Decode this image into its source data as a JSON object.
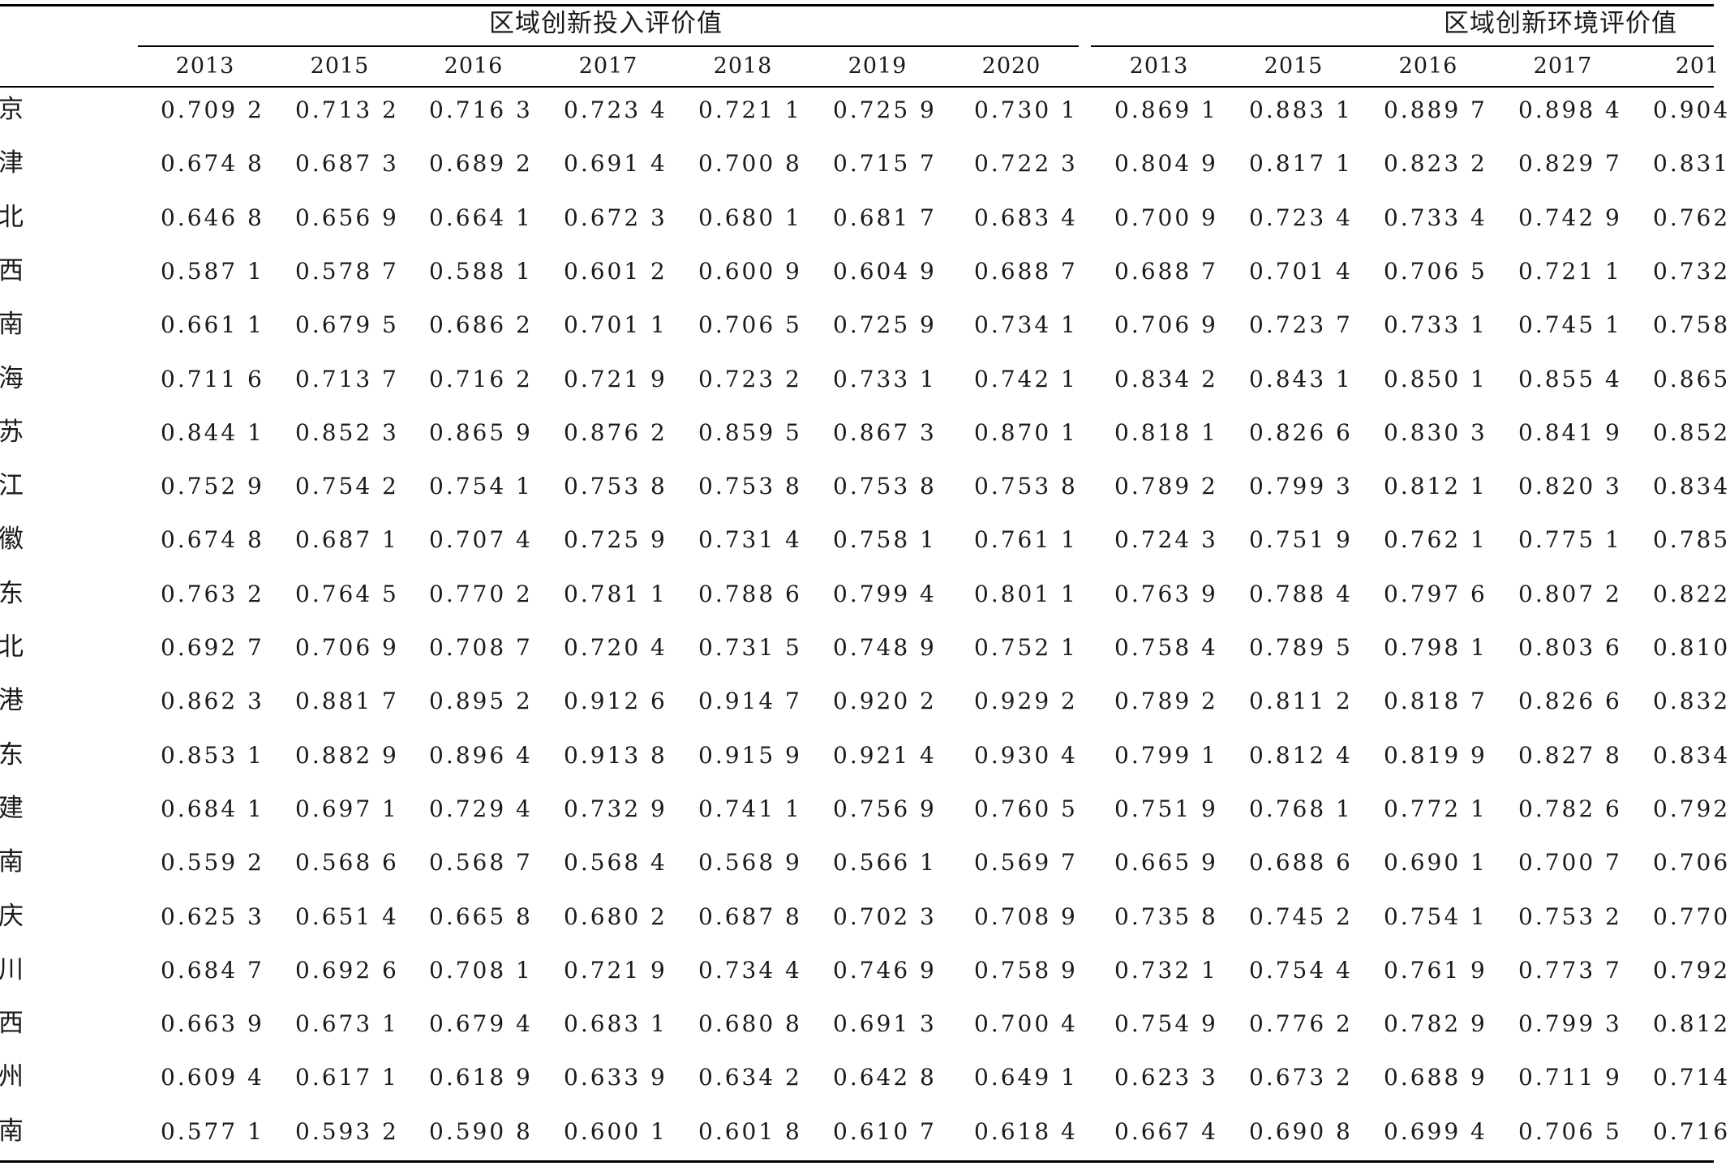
{
  "table": {
    "groups": [
      "区域创新投入评价值",
      "区域创新环境评价值"
    ],
    "years_group1": [
      "2013",
      "2015",
      "2016",
      "2017",
      "2018",
      "2019",
      "2020"
    ],
    "years_group2": [
      "2013",
      "2015",
      "2016",
      "2017",
      "201"
    ],
    "rows": [
      {
        "label": "京",
        "values": [
          "0.709 2",
          "0.713 2",
          "0.716 3",
          "0.723 4",
          "0.721 1",
          "0.725 9",
          "0.730 1",
          "0.869 1",
          "0.883 1",
          "0.889 7",
          "0.898 4",
          "0.904"
        ]
      },
      {
        "label": "津",
        "values": [
          "0.674 8",
          "0.687 3",
          "0.689 2",
          "0.691 4",
          "0.700 8",
          "0.715 7",
          "0.722 3",
          "0.804 9",
          "0.817 1",
          "0.823 2",
          "0.829 7",
          "0.831"
        ]
      },
      {
        "label": "北",
        "values": [
          "0.646 8",
          "0.656 9",
          "0.664 1",
          "0.672 3",
          "0.680 1",
          "0.681 7",
          "0.683 4",
          "0.700 9",
          "0.723 4",
          "0.733 4",
          "0.742 9",
          "0.762"
        ]
      },
      {
        "label": "西",
        "values": [
          "0.587 1",
          "0.578 7",
          "0.588 1",
          "0.601 2",
          "0.600 9",
          "0.604 9",
          "0.688 7",
          "0.688 7",
          "0.701 4",
          "0.706 5",
          "0.721 1",
          "0.732"
        ]
      },
      {
        "label": "南",
        "values": [
          "0.661 1",
          "0.679 5",
          "0.686 2",
          "0.701 1",
          "0.706 5",
          "0.725 9",
          "0.734 1",
          "0.706 9",
          "0.723 7",
          "0.733 1",
          "0.745 1",
          "0.758"
        ]
      },
      {
        "label": "海",
        "values": [
          "0.711 6",
          "0.713 7",
          "0.716 2",
          "0.721 9",
          "0.723 2",
          "0.733 1",
          "0.742 1",
          "0.834 2",
          "0.843 1",
          "0.850 1",
          "0.855 4",
          "0.865"
        ]
      },
      {
        "label": "苏",
        "values": [
          "0.844 1",
          "0.852 3",
          "0.865 9",
          "0.876 2",
          "0.859 5",
          "0.867 3",
          "0.870 1",
          "0.818 1",
          "0.826 6",
          "0.830 3",
          "0.841 9",
          "0.852"
        ]
      },
      {
        "label": "江",
        "values": [
          "0.752 9",
          "0.754 2",
          "0.754 1",
          "0.753 8",
          "0.753 8",
          "0.753 8",
          "0.753 8",
          "0.789 2",
          "0.799 3",
          "0.812 1",
          "0.820 3",
          "0.834"
        ]
      },
      {
        "label": "徽",
        "values": [
          "0.674 8",
          "0.687 1",
          "0.707 4",
          "0.725 9",
          "0.731 4",
          "0.758 1",
          "0.761 1",
          "0.724 3",
          "0.751 9",
          "0.762 1",
          "0.775 1",
          "0.785"
        ]
      },
      {
        "label": "东",
        "values": [
          "0.763 2",
          "0.764 5",
          "0.770 2",
          "0.781 1",
          "0.788 6",
          "0.799 4",
          "0.801 1",
          "0.763 9",
          "0.788 4",
          "0.797 6",
          "0.807 2",
          "0.822"
        ]
      },
      {
        "label": "北",
        "values": [
          "0.692 7",
          "0.706 9",
          "0.708 7",
          "0.720 4",
          "0.731 5",
          "0.748 9",
          "0.752 1",
          "0.758 4",
          "0.789 5",
          "0.798 1",
          "0.803 6",
          "0.810"
        ]
      },
      {
        "label": "港",
        "values": [
          "0.862 3",
          "0.881 7",
          "0.895 2",
          "0.912 6",
          "0.914 7",
          "0.920 2",
          "0.929 2",
          "0.789 2",
          "0.811 2",
          "0.818 7",
          "0.826 6",
          "0.832"
        ]
      },
      {
        "label": "东",
        "values": [
          "0.853 1",
          "0.882 9",
          "0.896 4",
          "0.913 8",
          "0.915 9",
          "0.921 4",
          "0.930 4",
          "0.799 1",
          "0.812 4",
          "0.819 9",
          "0.827 8",
          "0.834"
        ]
      },
      {
        "label": "建",
        "values": [
          "0.684 1",
          "0.697 1",
          "0.729 4",
          "0.732 9",
          "0.741 1",
          "0.756 9",
          "0.760 5",
          "0.751 9",
          "0.768 1",
          "0.772 1",
          "0.782 6",
          "0.792"
        ]
      },
      {
        "label": "南",
        "values": [
          "0.559 2",
          "0.568 6",
          "0.568 7",
          "0.568 4",
          "0.568 9",
          "0.566 1",
          "0.569 7",
          "0.665 9",
          "0.688 6",
          "0.690 1",
          "0.700 7",
          "0.706"
        ]
      },
      {
        "label": "庆",
        "values": [
          "0.625 3",
          "0.651 4",
          "0.665 8",
          "0.680 2",
          "0.687 8",
          "0.702 3",
          "0.708 9",
          "0.735 8",
          "0.745 2",
          "0.754 1",
          "0.753 2",
          "0.770"
        ]
      },
      {
        "label": "川",
        "values": [
          "0.684 7",
          "0.692 6",
          "0.708 1",
          "0.721 9",
          "0.734 4",
          "0.746 9",
          "0.758 9",
          "0.732 1",
          "0.754 4",
          "0.761 9",
          "0.773 7",
          "0.792"
        ]
      },
      {
        "label": "西",
        "values": [
          "0.663 9",
          "0.673 1",
          "0.679 4",
          "0.683 1",
          "0.680 8",
          "0.691 3",
          "0.700 4",
          "0.754 9",
          "0.776 2",
          "0.782 9",
          "0.799 3",
          "0.812"
        ]
      },
      {
        "label": "州",
        "values": [
          "0.609 4",
          "0.617 1",
          "0.618 9",
          "0.633 9",
          "0.634 2",
          "0.642 8",
          "0.649 1",
          "0.623 3",
          "0.673 2",
          "0.688 9",
          "0.711 9",
          "0.714"
        ]
      },
      {
        "label": "南",
        "values": [
          "0.577 1",
          "0.593 2",
          "0.590 8",
          "0.600 1",
          "0.601 8",
          "0.610 7",
          "0.618 4",
          "0.667 4",
          "0.690 8",
          "0.699 4",
          "0.706 5",
          "0.716"
        ]
      }
    ]
  }
}
